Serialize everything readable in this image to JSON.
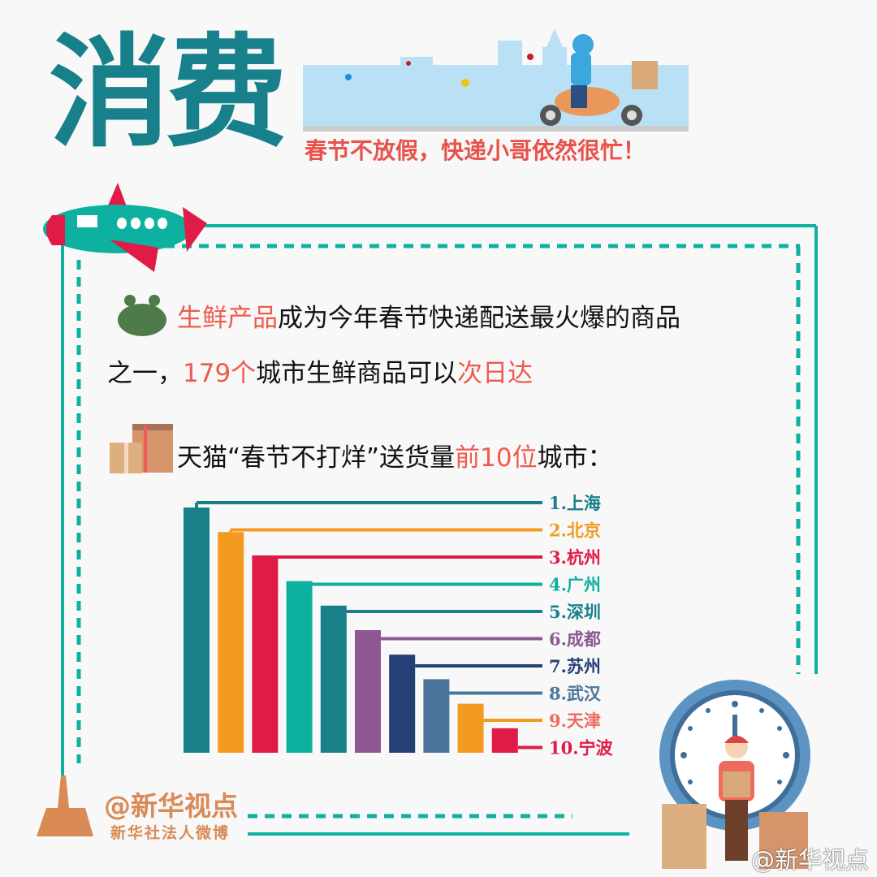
{
  "header": {
    "title": "消费",
    "subtitle": "春节不放假，快递小哥依然很忙！"
  },
  "body": {
    "line1_hl": "生鲜产品",
    "line1_rest": "成为今年春节快递配送最火爆的商品",
    "line2_a": "之一，",
    "line2_hl": "179个",
    "line2_b": "城市生鲜商品可以",
    "line2_hl2": "次日达",
    "line3_a": "天猫“春节不打烊”送货量",
    "line3_hl": "前10位",
    "line3_b": "城市："
  },
  "chart_data": {
    "type": "bar",
    "categories": [
      "1.上海",
      "2.北京",
      "3.杭州",
      "4.广州",
      "5.深圳",
      "6.成都",
      "7.苏州",
      "8.武汉",
      "9.天津",
      "10.宁波"
    ],
    "values": [
      10,
      9,
      8,
      7,
      6,
      5,
      4,
      3,
      2,
      1
    ],
    "colors": [
      "#178089",
      "#f39a21",
      "#e01b47",
      "#0db1a0",
      "#178089",
      "#8e5793",
      "#263f75",
      "#4a7499",
      "#f39a21",
      "#e01b47"
    ],
    "label_colors": [
      "#178089",
      "#f39a21",
      "#e01b47",
      "#0db1a0",
      "#178089",
      "#8e5793",
      "#263f75",
      "#4a7499",
      "#ee6b5f",
      "#e01b47"
    ],
    "title": "",
    "xlabel": "",
    "ylabel": ""
  },
  "footer": {
    "brand": "@新华视点",
    "brand_sub": "新华社法人微博",
    "watermark": "@新华视点"
  },
  "icons": {
    "plane": "airplane-icon",
    "crab": "crab-icon",
    "boxes": "package-icon",
    "clock": "clock-icon",
    "courier": "courier-icon",
    "scooter": "scooter-rider-icon"
  }
}
